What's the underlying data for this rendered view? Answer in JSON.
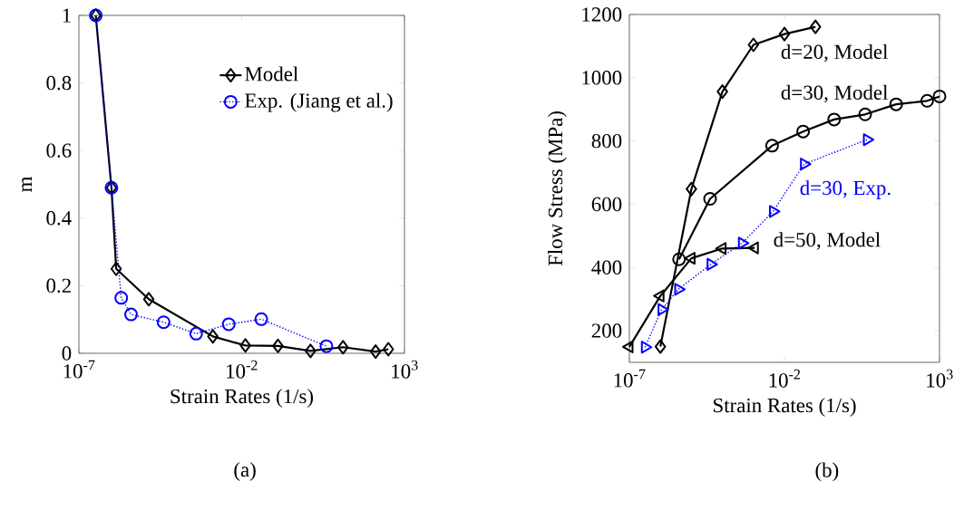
{
  "chart_data": [
    {
      "type": "line",
      "log": "x",
      "xlabel": "Strain Rates (1/s)",
      "ylabel": "m",
      "legend": "top right",
      "grid": false,
      "xlim": [
        1e-07,
        1000
      ],
      "xticks": [
        {
          "value": 1e-07,
          "label": "10$^{-7}$"
        },
        {
          "value": 0.01,
          "label": "10$^{-2}$"
        },
        {
          "value": 1000,
          "label": "10$^{3}$"
        }
      ],
      "ylim": [
        0,
        1
      ],
      "yticks": [
        0,
        0.2,
        0.4,
        0.6,
        0.8,
        1
      ],
      "annotations": [
        "(a)"
      ],
      "series": [
        {
          "name": "Model",
          "color": "#000000",
          "marker": "diamond",
          "line_style": "solid",
          "x": [
            3.3e-07,
            1e-06,
            1.4e-06,
            1.4e-05,
            0.0013,
            0.013,
            0.13,
            1.3,
            13,
            130,
            320
          ],
          "values": [
            1.0,
            0.49,
            0.25,
            0.16,
            0.05,
            0.023,
            0.022,
            0.007,
            0.018,
            0.005,
            0.012
          ]
        },
        {
          "name": "Exp. (Jiang et al.)",
          "color": "#0000ff",
          "marker": "circle",
          "line_style": "dotted",
          "x": [
            3.3e-07,
            1e-06,
            2e-06,
            4e-06,
            4e-05,
            0.0004,
            0.004,
            0.04,
            4
          ],
          "values": [
            1.0,
            0.49,
            0.164,
            0.115,
            0.092,
            0.058,
            0.086,
            0.101,
            0.021
          ]
        }
      ]
    },
    {
      "type": "line",
      "log": "x",
      "xlabel": "Strain Rates (1/s)",
      "ylabel": "Flow Stress (MPa)",
      "grid": false,
      "xlim": [
        1e-07,
        1000
      ],
      "xticks": [
        {
          "value": 1e-07,
          "label": "10$^{-7}$"
        },
        {
          "value": 0.01,
          "label": "10$^{-2}$"
        },
        {
          "value": 1000,
          "label": "10$^{3}$"
        }
      ],
      "ylim": [
        100,
        1200
      ],
      "yticks": [
        200,
        400,
        600,
        800,
        1000,
        1200
      ],
      "annotations": [
        "(b)"
      ],
      "series": [
        {
          "name": "d=20, Model",
          "color": "#000000",
          "marker": "diamond",
          "line_style": "solid",
          "x": [
            1e-06,
            1e-05,
            0.0001,
            0.001,
            0.01,
            0.1
          ],
          "values": [
            150,
            648,
            956,
            1104,
            1138,
            1161
          ]
        },
        {
          "name": "d=30, Model",
          "color": "#000000",
          "marker": "circle",
          "line_style": "solid",
          "x": [
            4e-06,
            4e-05,
            0.004,
            0.04,
            0.4,
            4,
            40,
            400,
            1000
          ],
          "values": [
            426,
            617,
            785,
            830,
            868,
            884,
            916,
            927,
            941
          ]
        },
        {
          "name": "d=50, Model",
          "color": "#000000",
          "marker": "triangle",
          "line_style": "solid",
          "x": [
            1e-07,
            1e-06,
            1e-05,
            0.0001,
            0.0011
          ],
          "values": [
            149,
            310,
            429,
            460,
            462
          ]
        },
        {
          "name": "d=30, Exp.",
          "color": "#0000ff",
          "marker": "triangle",
          "line_style": "dotted",
          "x": [
            3.2e-07,
            1.1e-06,
            3.8e-06,
            4.2e-05,
            0.00043,
            0.0043,
            0.043,
            4.6
          ],
          "values": [
            148,
            267,
            331,
            410,
            477,
            577,
            727,
            804
          ]
        }
      ]
    }
  ]
}
